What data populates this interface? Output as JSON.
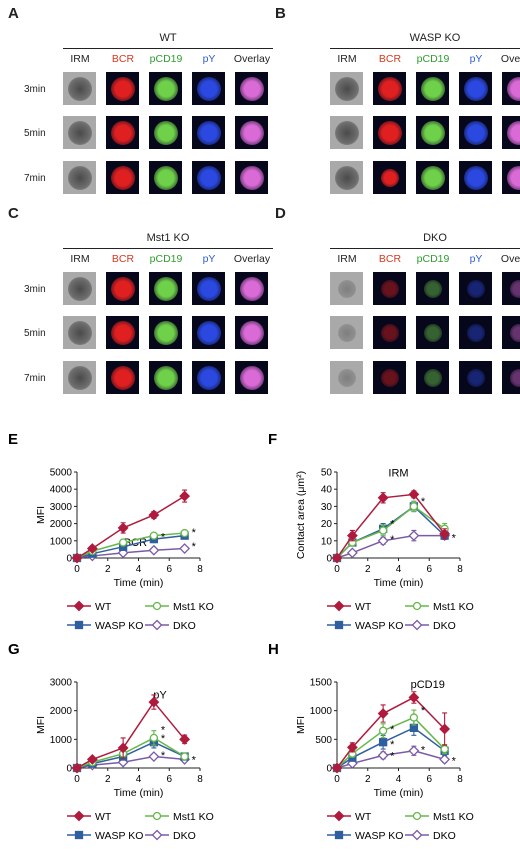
{
  "micrographs": [
    {
      "letter": "A",
      "title": "WT",
      "columns": [
        "IRM",
        "BCR",
        "pCD19",
        "pY",
        "Overlay"
      ],
      "rows": [
        "3min",
        "5min",
        "7min"
      ],
      "colors": {
        "IRM": "#8a8a8a",
        "BCR": "#e02020",
        "pCD19": "#6fd14a",
        "pY": "#2b49e0",
        "Overlay": "#d96ad6"
      }
    },
    {
      "letter": "B",
      "title": "WASP KO",
      "columns": [
        "IRM",
        "BCR",
        "pCD19",
        "pY",
        "Overlay"
      ],
      "rows": [
        "",
        "",
        ""
      ],
      "colors": {
        "IRM": "#8a8a8a",
        "BCR": "#e02020",
        "pCD19": "#6fd14a",
        "pY": "#2b49e0",
        "Overlay": "#d96ad6"
      }
    },
    {
      "letter": "C",
      "title": "Mst1 KO",
      "columns": [
        "IRM",
        "BCR",
        "pCD19",
        "pY",
        "Overlay"
      ],
      "rows": [
        "3min",
        "5min",
        "7min"
      ],
      "colors": {
        "IRM": "#8a8a8a",
        "BCR": "#e02020",
        "pCD19": "#6fd14a",
        "pY": "#2b49e0",
        "Overlay": "#d96ad6"
      }
    },
    {
      "letter": "D",
      "title": "DKO",
      "columns": [
        "IRM",
        "BCR",
        "pCD19",
        "pY",
        "Overlay"
      ],
      "rows": [
        "",
        "",
        ""
      ],
      "colors": {
        "IRM": "#8a8a8a",
        "BCR": "#e02020",
        "pCD19": "#6fd14a",
        "pY": "#2b49e0",
        "Overlay": "#d96ad6"
      }
    }
  ],
  "column_label_colors": {
    "IRM": "#222222",
    "BCR": "#d6381f",
    "pCD19": "#2e9e2e",
    "pY": "#2f5fd0",
    "Overlay": "#222222"
  },
  "series_styles": [
    {
      "name": "WT",
      "color": "#b01a3c",
      "marker": "diamond-filled"
    },
    {
      "name": "Mst1 KO",
      "color": "#66b84a",
      "marker": "circle-open"
    },
    {
      "name": "WASP KO",
      "color": "#2f5f9e",
      "marker": "square-filled"
    },
    {
      "name": "DKO",
      "color": "#7b5aa6",
      "marker": "diamond-open"
    }
  ],
  "chart_data": [
    {
      "panel": "E",
      "type": "line",
      "annotation": "BCR",
      "xlabel": "Time (min)",
      "ylabel": "MFI",
      "xlim": [
        0,
        8
      ],
      "ylim": [
        0,
        5000
      ],
      "xticks": [
        0,
        2,
        4,
        6,
        8
      ],
      "yticks": [
        0,
        1000,
        2000,
        3000,
        4000,
        5000
      ],
      "x": [
        0,
        1,
        3,
        5,
        7
      ],
      "series": [
        {
          "name": "WT",
          "values": [
            0,
            550,
            1750,
            2500,
            3600
          ],
          "errors": [
            0,
            100,
            300,
            200,
            350
          ]
        },
        {
          "name": "Mst1 KO",
          "values": [
            0,
            400,
            900,
            1300,
            1450
          ],
          "errors": [
            0,
            60,
            100,
            120,
            120
          ]
        },
        {
          "name": "WASP KO",
          "values": [
            0,
            250,
            650,
            1100,
            1300
          ],
          "errors": [
            0,
            50,
            120,
            200,
            180
          ]
        },
        {
          "name": "DKO",
          "values": [
            0,
            120,
            300,
            450,
            550
          ],
          "errors": [
            0,
            30,
            60,
            80,
            100
          ]
        }
      ],
      "stars": [
        {
          "x": 5,
          "y": 1250
        },
        {
          "x": 7,
          "y": 1500
        },
        {
          "x": 7,
          "y": 700
        }
      ]
    },
    {
      "panel": "F",
      "type": "line",
      "annotation": "IRM",
      "xlabel": "Time (min)",
      "ylabel": "Contact area (μm²)",
      "xlim": [
        0,
        8
      ],
      "ylim": [
        0,
        50
      ],
      "xticks": [
        0,
        2,
        4,
        6,
        8
      ],
      "yticks": [
        0,
        10,
        20,
        30,
        40,
        50
      ],
      "x": [
        0,
        1,
        3,
        5,
        7
      ],
      "series": [
        {
          "name": "WT",
          "values": [
            0,
            13,
            35,
            37,
            14
          ],
          "errors": [
            0,
            3,
            3,
            2,
            3
          ]
        },
        {
          "name": "Mst1 KO",
          "values": [
            0,
            9,
            16,
            30,
            17
          ],
          "errors": [
            0,
            2,
            3,
            3,
            3
          ]
        },
        {
          "name": "WASP KO",
          "values": [
            0,
            9,
            17,
            30,
            13
          ],
          "errors": [
            0,
            2,
            3,
            3,
            2
          ]
        },
        {
          "name": "DKO",
          "values": [
            0,
            3,
            10,
            13,
            13
          ],
          "errors": [
            0,
            1,
            2,
            3,
            2
          ]
        }
      ],
      "stars": [
        {
          "x": 3,
          "y": 20
        },
        {
          "x": 5,
          "y": 33
        },
        {
          "x": 3,
          "y": 11
        },
        {
          "x": 7,
          "y": 12
        }
      ]
    },
    {
      "panel": "G",
      "type": "line",
      "annotation": "pY",
      "xlabel": "Time (min)",
      "ylabel": "MFI",
      "xlim": [
        0,
        8
      ],
      "ylim": [
        0,
        3000
      ],
      "xticks": [
        0,
        2,
        4,
        6,
        8
      ],
      "yticks": [
        0,
        1000,
        2000,
        3000
      ],
      "x": [
        0,
        1,
        3,
        5,
        7
      ],
      "series": [
        {
          "name": "WT",
          "values": [
            0,
            300,
            700,
            2300,
            1000
          ],
          "errors": [
            0,
            60,
            350,
            250,
            150
          ]
        },
        {
          "name": "Mst1 KO",
          "values": [
            0,
            200,
            500,
            1050,
            400
          ],
          "errors": [
            0,
            50,
            150,
            250,
            100
          ]
        },
        {
          "name": "WASP KO",
          "values": [
            0,
            150,
            400,
            900,
            400
          ],
          "errors": [
            0,
            40,
            100,
            200,
            100
          ]
        },
        {
          "name": "DKO",
          "values": [
            0,
            100,
            200,
            400,
            300
          ],
          "errors": [
            0,
            30,
            60,
            80,
            60
          ]
        }
      ],
      "stars": [
        {
          "x": 5,
          "y": 1350
        },
        {
          "x": 5,
          "y": 1050
        },
        {
          "x": 5,
          "y": 450
        },
        {
          "x": 7,
          "y": 300
        }
      ]
    },
    {
      "panel": "H",
      "type": "line",
      "annotation": "pCD19",
      "xlabel": "Time (min)",
      "ylabel": "MFI",
      "xlim": [
        0,
        8
      ],
      "ylim": [
        0,
        1500
      ],
      "xticks": [
        0,
        2,
        4,
        6,
        8
      ],
      "yticks": [
        0,
        500,
        1000,
        1500
      ],
      "x": [
        0,
        1,
        3,
        5,
        7
      ],
      "series": [
        {
          "name": "WT",
          "values": [
            0,
            360,
            950,
            1230,
            680
          ],
          "errors": [
            0,
            80,
            150,
            100,
            280
          ]
        },
        {
          "name": "Mst1 KO",
          "values": [
            0,
            250,
            650,
            880,
            330
          ],
          "errors": [
            0,
            60,
            120,
            130,
            80
          ]
        },
        {
          "name": "WASP KO",
          "values": [
            0,
            180,
            450,
            700,
            300
          ],
          "errors": [
            0,
            50,
            120,
            130,
            80
          ]
        },
        {
          "name": "DKO",
          "values": [
            0,
            80,
            220,
            300,
            150
          ],
          "errors": [
            0,
            30,
            60,
            80,
            50
          ]
        }
      ],
      "stars": [
        {
          "x": 3,
          "y": 680
        },
        {
          "x": 5,
          "y": 1010
        },
        {
          "x": 3,
          "y": 420
        },
        {
          "x": 3,
          "y": 220
        },
        {
          "x": 5,
          "y": 320
        },
        {
          "x": 7,
          "y": 130
        }
      ]
    }
  ]
}
